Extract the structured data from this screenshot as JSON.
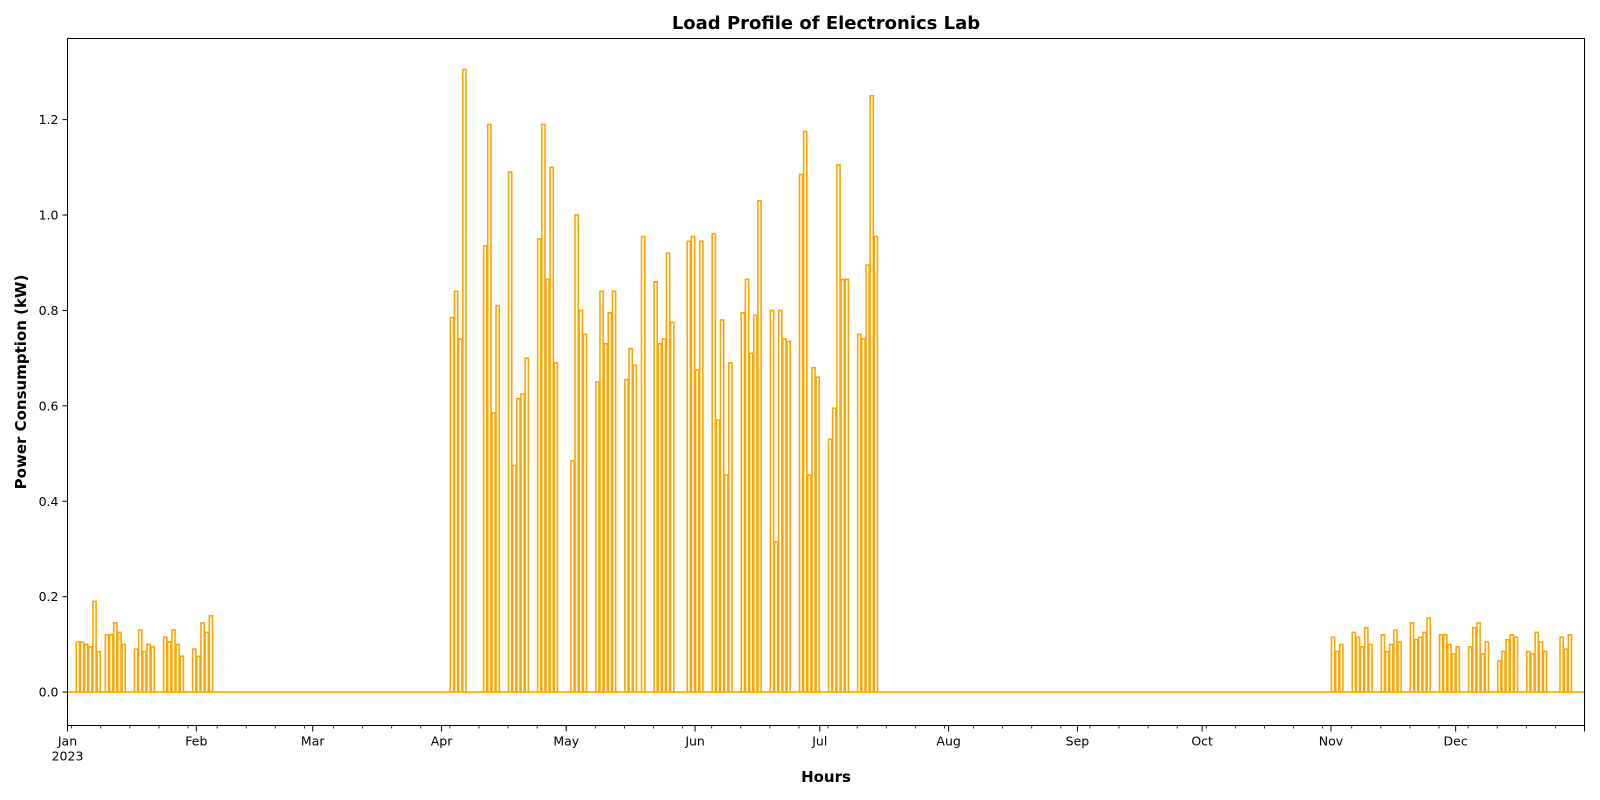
{
  "chart_data": {
    "type": "line",
    "title": "Load Profile of Electronics Lab",
    "xlabel": "Hours",
    "ylabel": "Power Consumption (kW)",
    "x_range": [
      "2023-01-01",
      "2024-01-01"
    ],
    "ylim": [
      -0.07,
      1.37
    ],
    "y_ticks": [
      0.0,
      0.2,
      0.4,
      0.6,
      0.8,
      1.0,
      1.2
    ],
    "x_ticks": [
      {
        "date": "2023-01-01",
        "label": "Jan",
        "sublabel": "2023"
      },
      {
        "date": "2023-02-01",
        "label": "Feb"
      },
      {
        "date": "2023-03-01",
        "label": "Mar"
      },
      {
        "date": "2023-04-01",
        "label": "Apr"
      },
      {
        "date": "2023-05-01",
        "label": "May"
      },
      {
        "date": "2023-06-01",
        "label": "Jun"
      },
      {
        "date": "2023-07-01",
        "label": "Jul"
      },
      {
        "date": "2023-08-01",
        "label": "Aug"
      },
      {
        "date": "2023-09-01",
        "label": "Sep"
      },
      {
        "date": "2023-10-01",
        "label": "Oct"
      },
      {
        "date": "2023-11-01",
        "label": "Nov"
      },
      {
        "date": "2023-12-01",
        "label": "Dec"
      }
    ],
    "grid": false,
    "legend": "none",
    "series": [
      {
        "color": "#FFA500",
        "baseline": 0.0,
        "pulses": [
          [
            "2023-01-03",
            0.105
          ],
          [
            "2023-01-04",
            0.105
          ],
          [
            "2023-01-05",
            0.1
          ],
          [
            "2023-01-06",
            0.095
          ],
          [
            "2023-01-07",
            0.19
          ],
          [
            "2023-01-08",
            0.085
          ],
          [
            "2023-01-10",
            0.12
          ],
          [
            "2023-01-11",
            0.12
          ],
          [
            "2023-01-12",
            0.145
          ],
          [
            "2023-01-13",
            0.125
          ],
          [
            "2023-01-14",
            0.1
          ],
          [
            "2023-01-17",
            0.09
          ],
          [
            "2023-01-18",
            0.13
          ],
          [
            "2023-01-19",
            0.085
          ],
          [
            "2023-01-20",
            0.1
          ],
          [
            "2023-01-21",
            0.095
          ],
          [
            "2023-01-24",
            0.115
          ],
          [
            "2023-01-25",
            0.105
          ],
          [
            "2023-01-26",
            0.13
          ],
          [
            "2023-01-27",
            0.1
          ],
          [
            "2023-01-28",
            0.075
          ],
          [
            "2023-01-31",
            0.09
          ],
          [
            "2023-02-01",
            0.075
          ],
          [
            "2023-02-02",
            0.145
          ],
          [
            "2023-02-03",
            0.125
          ],
          [
            "2023-02-04",
            0.16
          ],
          [
            "2023-04-03",
            0.785
          ],
          [
            "2023-04-04",
            0.84
          ],
          [
            "2023-04-05",
            0.74
          ],
          [
            "2023-04-06",
            1.305
          ],
          [
            "2023-04-11",
            0.935
          ],
          [
            "2023-04-12",
            1.19
          ],
          [
            "2023-04-13",
            0.585
          ],
          [
            "2023-04-14",
            0.81
          ],
          [
            "2023-04-17",
            1.09
          ],
          [
            "2023-04-18",
            0.475
          ],
          [
            "2023-04-19",
            0.615
          ],
          [
            "2023-04-20",
            0.625
          ],
          [
            "2023-04-21",
            0.7
          ],
          [
            "2023-04-24",
            0.95
          ],
          [
            "2023-04-25",
            1.19
          ],
          [
            "2023-04-26",
            0.865
          ],
          [
            "2023-04-27",
            1.1
          ],
          [
            "2023-04-28",
            0.69
          ],
          [
            "2023-05-02",
            0.485
          ],
          [
            "2023-05-03",
            1.0
          ],
          [
            "2023-05-04",
            0.8
          ],
          [
            "2023-05-05",
            0.75
          ],
          [
            "2023-05-08",
            0.65
          ],
          [
            "2023-05-09",
            0.84
          ],
          [
            "2023-05-10",
            0.73
          ],
          [
            "2023-05-11",
            0.795
          ],
          [
            "2023-05-12",
            0.84
          ],
          [
            "2023-05-15",
            0.655
          ],
          [
            "2023-05-16",
            0.72
          ],
          [
            "2023-05-17",
            0.685
          ],
          [
            "2023-05-19",
            0.955
          ],
          [
            "2023-05-22",
            0.86
          ],
          [
            "2023-05-23",
            0.73
          ],
          [
            "2023-05-24",
            0.74
          ],
          [
            "2023-05-25",
            0.92
          ],
          [
            "2023-05-26",
            0.775
          ],
          [
            "2023-05-30",
            0.945
          ],
          [
            "2023-05-31",
            0.955
          ],
          [
            "2023-06-01",
            0.675
          ],
          [
            "2023-06-02",
            0.945
          ],
          [
            "2023-06-05",
            0.96
          ],
          [
            "2023-06-06",
            0.57
          ],
          [
            "2023-06-07",
            0.78
          ],
          [
            "2023-06-08",
            0.455
          ],
          [
            "2023-06-09",
            0.69
          ],
          [
            "2023-06-12",
            0.795
          ],
          [
            "2023-06-13",
            0.865
          ],
          [
            "2023-06-14",
            0.71
          ],
          [
            "2023-06-15",
            0.79
          ],
          [
            "2023-06-16",
            1.03
          ],
          [
            "2023-06-19",
            0.8
          ],
          [
            "2023-06-20",
            0.315
          ],
          [
            "2023-06-21",
            0.8
          ],
          [
            "2023-06-22",
            0.74
          ],
          [
            "2023-06-23",
            0.735
          ],
          [
            "2023-06-26",
            1.085
          ],
          [
            "2023-06-27",
            1.175
          ],
          [
            "2023-06-28",
            0.455
          ],
          [
            "2023-06-29",
            0.68
          ],
          [
            "2023-06-30",
            0.66
          ],
          [
            "2023-07-03",
            0.53
          ],
          [
            "2023-07-04",
            0.595
          ],
          [
            "2023-07-05",
            1.105
          ],
          [
            "2023-07-06",
            0.865
          ],
          [
            "2023-07-07",
            0.865
          ],
          [
            "2023-07-10",
            0.75
          ],
          [
            "2023-07-11",
            0.74
          ],
          [
            "2023-07-12",
            0.895
          ],
          [
            "2023-07-13",
            1.25
          ],
          [
            "2023-07-14",
            0.955
          ],
          [
            "2023-11-01",
            0.115
          ],
          [
            "2023-11-02",
            0.085
          ],
          [
            "2023-11-03",
            0.1
          ],
          [
            "2023-11-06",
            0.125
          ],
          [
            "2023-11-07",
            0.115
          ],
          [
            "2023-11-08",
            0.095
          ],
          [
            "2023-11-09",
            0.135
          ],
          [
            "2023-11-10",
            0.1
          ],
          [
            "2023-11-13",
            0.12
          ],
          [
            "2023-11-14",
            0.085
          ],
          [
            "2023-11-15",
            0.1
          ],
          [
            "2023-11-16",
            0.13
          ],
          [
            "2023-11-17",
            0.105
          ],
          [
            "2023-11-20",
            0.145
          ],
          [
            "2023-11-21",
            0.11
          ],
          [
            "2023-11-22",
            0.115
          ],
          [
            "2023-11-23",
            0.125
          ],
          [
            "2023-11-24",
            0.155
          ],
          [
            "2023-11-27",
            0.12
          ],
          [
            "2023-11-28",
            0.12
          ],
          [
            "2023-11-29",
            0.1
          ],
          [
            "2023-11-30",
            0.08
          ],
          [
            "2023-12-01",
            0.095
          ],
          [
            "2023-12-04",
            0.095
          ],
          [
            "2023-12-05",
            0.135
          ],
          [
            "2023-12-06",
            0.145
          ],
          [
            "2023-12-07",
            0.08
          ],
          [
            "2023-12-08",
            0.105
          ],
          [
            "2023-12-11",
            0.065
          ],
          [
            "2023-12-12",
            0.085
          ],
          [
            "2023-12-13",
            0.11
          ],
          [
            "2023-12-14",
            0.12
          ],
          [
            "2023-12-15",
            0.115
          ],
          [
            "2023-12-18",
            0.085
          ],
          [
            "2023-12-19",
            0.08
          ],
          [
            "2023-12-20",
            0.125
          ],
          [
            "2023-12-21",
            0.105
          ],
          [
            "2023-12-22",
            0.085
          ],
          [
            "2023-12-26",
            0.115
          ],
          [
            "2023-12-27",
            0.09
          ],
          [
            "2023-12-28",
            0.12
          ]
        ]
      }
    ]
  }
}
